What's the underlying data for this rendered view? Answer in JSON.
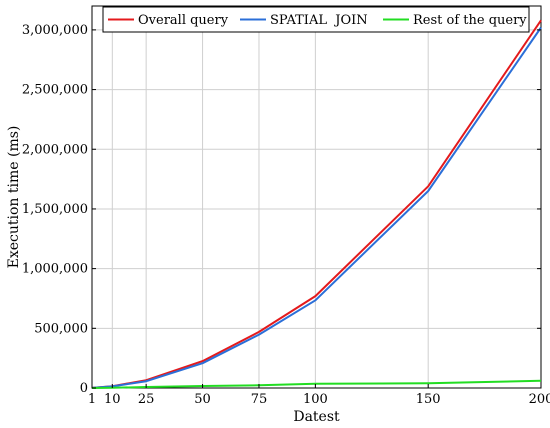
{
  "chart_data": {
    "type": "line",
    "title": "",
    "xlabel": "Datest",
    "ylabel": "Execution time (ms)",
    "xlim": [
      1,
      200
    ],
    "ylim": [
      0,
      3200000
    ],
    "x_ticks": [
      1,
      10,
      25,
      50,
      75,
      100,
      150,
      200
    ],
    "x_tick_labels": [
      "1",
      "10",
      "25",
      "50",
      "75",
      "100",
      "150",
      "200"
    ],
    "y_ticks": [
      0,
      500000,
      1000000,
      1500000,
      2000000,
      2500000,
      3000000
    ],
    "y_tick_labels": [
      "0",
      "500,000",
      "1,000,000",
      "1,500,000",
      "2,000,000",
      "2,500,000",
      "3,000,000"
    ],
    "grid": true,
    "legend_position": "top",
    "x": [
      1,
      10,
      25,
      50,
      75,
      100,
      150,
      200
    ],
    "series": [
      {
        "name": "Overall query",
        "color": "#e41a1c",
        "values": [
          500,
          15000,
          65000,
          225000,
          470000,
          770000,
          1690000,
          3080000
        ]
      },
      {
        "name": "SPATIAL  JOIN",
        "color": "#2b6fd8",
        "values": [
          450,
          13000,
          57000,
          208000,
          447000,
          735000,
          1650000,
          3020000
        ]
      },
      {
        "name": "Rest of the query",
        "color": "#22dd22",
        "values": [
          50,
          2000,
          8000,
          17000,
          23000,
          35000,
          40000,
          60000
        ]
      }
    ]
  }
}
